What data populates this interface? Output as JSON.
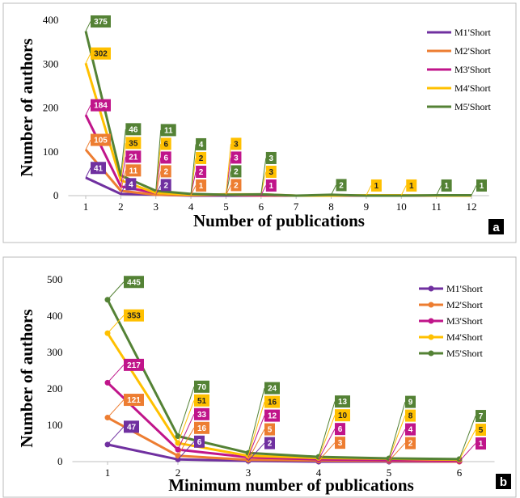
{
  "chart_data": [
    {
      "type": "line",
      "panel": "a",
      "xlabel": "Number of publications",
      "ylabel": "Number of authors",
      "x": [
        1,
        2,
        3,
        4,
        5,
        6,
        7,
        8,
        9,
        10,
        11,
        12
      ],
      "xlim": [
        0.5,
        12.5
      ],
      "xticks": [
        1,
        2,
        3,
        4,
        5,
        6,
        7,
        8,
        9,
        10,
        11,
        12
      ],
      "ylim": [
        0,
        400
      ],
      "yticks": [
        0,
        100,
        200,
        300,
        400
      ],
      "legend": "upper right",
      "markers": false,
      "series": [
        {
          "name": "M1'Short",
          "color": "#7030a0",
          "values": [
            41,
            4,
            2,
            0,
            0,
            0,
            0,
            0,
            0,
            0,
            0,
            0
          ],
          "value_labels": [
            "41",
            "4",
            "2",
            null,
            null,
            null,
            null,
            null,
            null,
            null,
            null,
            null
          ]
        },
        {
          "name": "M2'Short",
          "color": "#ed7d31",
          "values": [
            105,
            11,
            2,
            1,
            2,
            0,
            0,
            0,
            0,
            0,
            0,
            0
          ],
          "value_labels": [
            "105",
            "11",
            "2",
            "1",
            "2",
            null,
            null,
            null,
            null,
            null,
            null,
            null
          ]
        },
        {
          "name": "M3'Short",
          "color": "#c0158a",
          "values": [
            184,
            21,
            6,
            2,
            3,
            1,
            0,
            0,
            0,
            0,
            0,
            0
          ],
          "value_labels": [
            "184",
            "21",
            "6",
            "2",
            "3",
            "1",
            null,
            null,
            null,
            null,
            null,
            null
          ]
        },
        {
          "name": "M4'Short",
          "color": "#ffc000",
          "values": [
            302,
            35,
            6,
            2,
            3,
            3,
            0,
            0,
            1,
            1,
            0,
            0
          ],
          "value_labels": [
            "302",
            "35",
            "6",
            "2",
            "3",
            "3",
            null,
            null,
            "1",
            "1",
            null,
            null
          ]
        },
        {
          "name": "M5'Short",
          "color": "#548235",
          "values": [
            375,
            46,
            11,
            4,
            2,
            3,
            0,
            2,
            0,
            0,
            1,
            1
          ],
          "value_labels": [
            "375",
            "46",
            "11",
            "4",
            "2",
            "3",
            null,
            "2",
            null,
            null,
            "1",
            "1"
          ]
        }
      ]
    },
    {
      "type": "line",
      "panel": "b",
      "xlabel": "Minimum number of publications",
      "ylabel": "Number of authors",
      "x": [
        1,
        2,
        3,
        4,
        5,
        6
      ],
      "xlim": [
        0.5,
        6.5
      ],
      "xticks": [
        1,
        2,
        3,
        4,
        5,
        6
      ],
      "ylim": [
        0,
        500
      ],
      "yticks": [
        0,
        100,
        200,
        300,
        400,
        500
      ],
      "legend": "upper right",
      "markers": true,
      "series": [
        {
          "name": "M1'Short",
          "color": "#7030a0",
          "values": [
            47,
            6,
            2,
            0,
            0,
            0
          ],
          "value_labels": [
            "47",
            "6",
            "2",
            null,
            null,
            null
          ]
        },
        {
          "name": "M2'Short",
          "color": "#ed7d31",
          "values": [
            121,
            16,
            5,
            3,
            2,
            0
          ],
          "value_labels": [
            "121",
            "16",
            "5",
            "3",
            "2",
            null
          ]
        },
        {
          "name": "M3'Short",
          "color": "#c0158a",
          "values": [
            217,
            33,
            12,
            6,
            4,
            1
          ],
          "value_labels": [
            "217",
            "33",
            "12",
            "6",
            "4",
            "1"
          ]
        },
        {
          "name": "M4'Short",
          "color": "#ffc000",
          "values": [
            353,
            51,
            16,
            10,
            8,
            5
          ],
          "value_labels": [
            "353",
            "51",
            "16",
            "10",
            "8",
            "5"
          ]
        },
        {
          "name": "M5'Short",
          "color": "#548235",
          "values": [
            445,
            70,
            24,
            13,
            9,
            7
          ],
          "value_labels": [
            "445",
            "70",
            "24",
            "13",
            "9",
            "7"
          ]
        }
      ]
    }
  ]
}
